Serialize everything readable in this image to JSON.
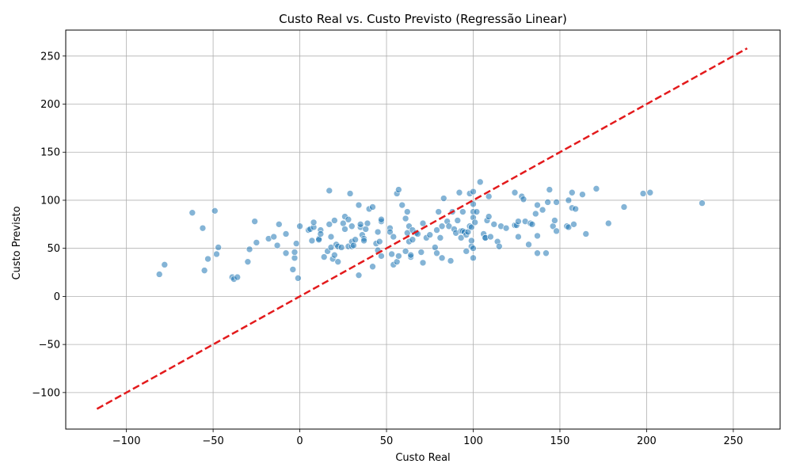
{
  "chart_data": {
    "type": "scatter",
    "title": "Custo Real vs. Custo Previsto (Regressão Linear)",
    "xlabel": "Custo Real",
    "ylabel": "Custo Previsto",
    "xlim": [
      -135,
      277
    ],
    "ylim": [
      -138,
      277
    ],
    "xticks": [
      -100,
      -50,
      0,
      50,
      100,
      150,
      200,
      250
    ],
    "yticks": [
      -100,
      -50,
      0,
      50,
      100,
      150,
      200,
      250
    ],
    "grid": true,
    "colors": {
      "points": "#1f77b4",
      "reference_line": "#e31a1c",
      "grid": "#b0b0b0"
    },
    "reference_line": {
      "x": [
        -117,
        258
      ],
      "y": [
        -117,
        258
      ],
      "style": "dashed"
    },
    "points": [
      [
        -81,
        23
      ],
      [
        -78,
        33
      ],
      [
        -62,
        87
      ],
      [
        -56,
        71
      ],
      [
        -55,
        27
      ],
      [
        -53,
        39
      ],
      [
        -49,
        89
      ],
      [
        -48,
        44
      ],
      [
        -47,
        51
      ],
      [
        -39,
        20
      ],
      [
        -38,
        18
      ],
      [
        -36,
        20
      ],
      [
        -30,
        36
      ],
      [
        -29,
        49
      ],
      [
        -26,
        78
      ],
      [
        -25,
        56
      ],
      [
        -18,
        60
      ],
      [
        -15,
        62
      ],
      [
        -13,
        53
      ],
      [
        -12,
        75
      ],
      [
        -8,
        65
      ],
      [
        -8,
        45
      ],
      [
        -4,
        28
      ],
      [
        -3,
        40
      ],
      [
        -3,
        46
      ],
      [
        -2,
        55
      ],
      [
        -1,
        19
      ],
      [
        0,
        73
      ],
      [
        5,
        69
      ],
      [
        6,
        70
      ],
      [
        7,
        58
      ],
      [
        8,
        72
      ],
      [
        8,
        77
      ],
      [
        11,
        60
      ],
      [
        11,
        59
      ],
      [
        12,
        69
      ],
      [
        12,
        65
      ],
      [
        14,
        41
      ],
      [
        16,
        47
      ],
      [
        17,
        110
      ],
      [
        17,
        75
      ],
      [
        18,
        51
      ],
      [
        18,
        62
      ],
      [
        19,
        39
      ],
      [
        20,
        43
      ],
      [
        20,
        79
      ],
      [
        21,
        54
      ],
      [
        22,
        52
      ],
      [
        22,
        36
      ],
      [
        24,
        51
      ],
      [
        25,
        76
      ],
      [
        26,
        70
      ],
      [
        26,
        83
      ],
      [
        28,
        80
      ],
      [
        28,
        52
      ],
      [
        29,
        107
      ],
      [
        30,
        52
      ],
      [
        30,
        57
      ],
      [
        30,
        73
      ],
      [
        31,
        53
      ],
      [
        32,
        59
      ],
      [
        34,
        22
      ],
      [
        34,
        95
      ],
      [
        35,
        72
      ],
      [
        35,
        75
      ],
      [
        36,
        64
      ],
      [
        37,
        60
      ],
      [
        37,
        58
      ],
      [
        38,
        70
      ],
      [
        39,
        76
      ],
      [
        40,
        91
      ],
      [
        42,
        93
      ],
      [
        42,
        31
      ],
      [
        44,
        55
      ],
      [
        45,
        48
      ],
      [
        45,
        67
      ],
      [
        46,
        57
      ],
      [
        47,
        78
      ],
      [
        47,
        80
      ],
      [
        47,
        42
      ],
      [
        52,
        71
      ],
      [
        52,
        67
      ],
      [
        53,
        44
      ],
      [
        54,
        62
      ],
      [
        54,
        33
      ],
      [
        56,
        36
      ],
      [
        56,
        107
      ],
      [
        57,
        111
      ],
      [
        57,
        42
      ],
      [
        59,
        95
      ],
      [
        61,
        47
      ],
      [
        61,
        81
      ],
      [
        62,
        88
      ],
      [
        62,
        66
      ],
      [
        63,
        73
      ],
      [
        63,
        57
      ],
      [
        64,
        41
      ],
      [
        64,
        43
      ],
      [
        65,
        69
      ],
      [
        65,
        59
      ],
      [
        67,
        66
      ],
      [
        68,
        65
      ],
      [
        70,
        46
      ],
      [
        71,
        76
      ],
      [
        71,
        35
      ],
      [
        73,
        61
      ],
      [
        75,
        64
      ],
      [
        78,
        51
      ],
      [
        79,
        45
      ],
      [
        79,
        69
      ],
      [
        80,
        88
      ],
      [
        81,
        61
      ],
      [
        82,
        40
      ],
      [
        82,
        73
      ],
      [
        83,
        102
      ],
      [
        85,
        78
      ],
      [
        86,
        73
      ],
      [
        87,
        37
      ],
      [
        88,
        88
      ],
      [
        89,
        70
      ],
      [
        90,
        66
      ],
      [
        91,
        79
      ],
      [
        92,
        108
      ],
      [
        93,
        61
      ],
      [
        93,
        68
      ],
      [
        94,
        88
      ],
      [
        94,
        68
      ],
      [
        95,
        67
      ],
      [
        96,
        47
      ],
      [
        96,
        64
      ],
      [
        97,
        67
      ],
      [
        98,
        107
      ],
      [
        98,
        73
      ],
      [
        99,
        52
      ],
      [
        99,
        58
      ],
      [
        99,
        72
      ],
      [
        100,
        40
      ],
      [
        100,
        50
      ],
      [
        100,
        88
      ],
      [
        100,
        96
      ],
      [
        100,
        109
      ],
      [
        100,
        82
      ],
      [
        101,
        77
      ],
      [
        102,
        88
      ],
      [
        104,
        119
      ],
      [
        106,
        65
      ],
      [
        107,
        61
      ],
      [
        107,
        61
      ],
      [
        108,
        79
      ],
      [
        109,
        104
      ],
      [
        109,
        83
      ],
      [
        110,
        62
      ],
      [
        112,
        75
      ],
      [
        114,
        57
      ],
      [
        115,
        52
      ],
      [
        116,
        73
      ],
      [
        119,
        71
      ],
      [
        124,
        74
      ],
      [
        124,
        108
      ],
      [
        125,
        74
      ],
      [
        126,
        78
      ],
      [
        126,
        62
      ],
      [
        128,
        104
      ],
      [
        129,
        101
      ],
      [
        130,
        78
      ],
      [
        132,
        54
      ],
      [
        133,
        76
      ],
      [
        134,
        75
      ],
      [
        136,
        86
      ],
      [
        137,
        63
      ],
      [
        137,
        95
      ],
      [
        137,
        45
      ],
      [
        140,
        90
      ],
      [
        142,
        45
      ],
      [
        143,
        98
      ],
      [
        144,
        111
      ],
      [
        146,
        73
      ],
      [
        147,
        79
      ],
      [
        148,
        98
      ],
      [
        148,
        68
      ],
      [
        154,
        73
      ],
      [
        155,
        72
      ],
      [
        155,
        100
      ],
      [
        157,
        108
      ],
      [
        157,
        92
      ],
      [
        158,
        75
      ],
      [
        159,
        91
      ],
      [
        163,
        106
      ],
      [
        165,
        65
      ],
      [
        171,
        112
      ],
      [
        178,
        76
      ],
      [
        187,
        93
      ],
      [
        198,
        107
      ],
      [
        202,
        108
      ],
      [
        232,
        97
      ]
    ]
  }
}
